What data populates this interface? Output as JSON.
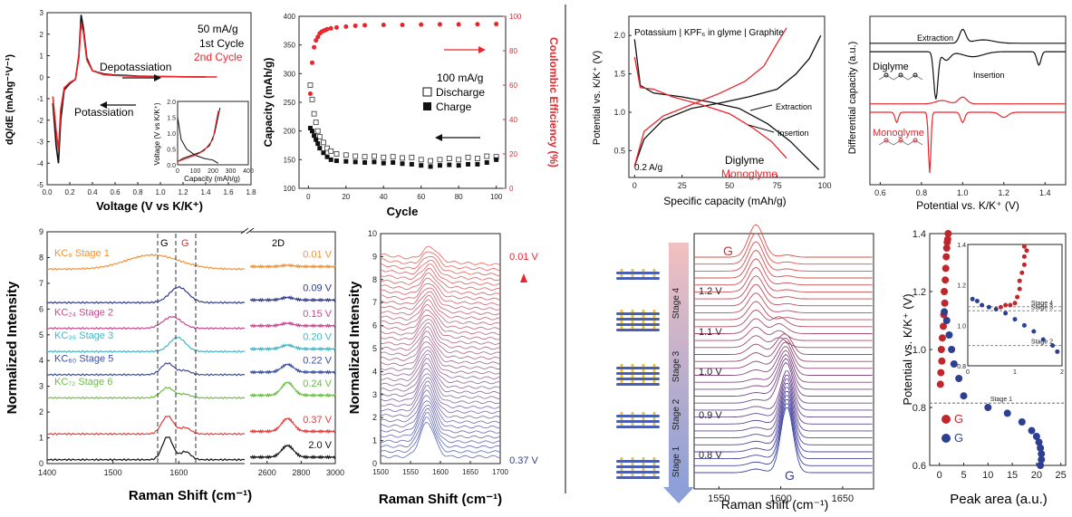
{
  "panels": {
    "p1": {
      "ylabel": "dQ/dE (mAhg⁻¹V⁻¹)",
      "xlabel": "Voltage (V vs K/K⁺)",
      "legend": [
        "50 mA/g",
        "1st Cycle",
        "2nd Cycle"
      ],
      "ann": [
        "Depotassiation",
        "Potassiation"
      ],
      "inset_ylabel": "Voltage (V vs K/K⁺)",
      "inset_xlabel": "Capacity (mAh/g)"
    },
    "p2": {
      "ylabel": "Capacity (mAh/g)",
      "y2label": "Coulombic Efficiency (%)",
      "xlabel": "Cycle",
      "legend": [
        "100 mA/g",
        "Discharge",
        "Charge"
      ]
    },
    "p3": {
      "ylabel": "Normalized Intensity",
      "xlabel": "Raman Shift (cm⁻¹)",
      "peaks": [
        "G",
        "G",
        "2D"
      ],
      "stage_labels": [
        "KC₈ Stage 1",
        "KC₂₄ Stage 2",
        "KC₃₆ Stage 3",
        "KC₆₀ Stage 5",
        "KC₇₂ Stage 6"
      ],
      "volt_labels": [
        "0.01 V",
        "0.09 V",
        "0.15 V",
        "0.20 V",
        "0.22 V",
        "0.24 V",
        "0.37 V",
        "2.0 V"
      ]
    },
    "p4": {
      "ylabel": "Normalized Intensity",
      "xlabel": "Raman Shift (cm⁻¹)",
      "top": "0.01 V",
      "bottom": "0.37 V"
    },
    "p5": {
      "ylabel": "Potential vs. K/K⁺ (V)",
      "xlabel": "Specific capacity (mAh/g)",
      "title": "Potassium | KPF₆ in glyme | Graphite",
      "rate": "0.2 A/g",
      "ann": [
        "Extraction",
        "Insertion"
      ],
      "legend": [
        "Diglyme",
        "Monoglyme"
      ]
    },
    "p6": {
      "ylabel": "Differential capacity (a.u.)",
      "xlabel": "Potential vs. K/K⁺ (V)",
      "ann": [
        "Extraction",
        "Insertion"
      ],
      "labels": [
        "Diglyme",
        "Monoglyme"
      ]
    },
    "p7": {
      "xlabel": "Raman shift (cm⁻¹)",
      "peak_top": "G",
      "peak_bottom": "G",
      "volts": [
        "1.2 V",
        "1.1 V",
        "1.0 V",
        "0.9 V",
        "0.8 V"
      ],
      "stages": [
        "Stage 4",
        "Stage 3",
        "Stage 2",
        "Stage 1"
      ]
    },
    "p8": {
      "ylabel": "Potential vs. K/K⁺ (V)",
      "xlabel": "Peak area (a.u.)",
      "legend": [
        "G",
        "G"
      ],
      "inset_stages": [
        "Stage 4",
        "Stage 3",
        "Stage 2",
        "Stage 1"
      ]
    }
  },
  "colors": {
    "red": "#e8262c",
    "black": "#111111",
    "gray": "#555555",
    "blue": "#2c3f93"
  },
  "chart_data": [
    {
      "id": "p1",
      "type": "line",
      "xlim": [
        0,
        1.8
      ],
      "ylim": [
        -5,
        3
      ],
      "xticks": [
        0,
        0.2,
        0.4,
        0.6,
        0.8,
        1.0,
        1.2,
        1.4,
        1.6,
        1.8
      ],
      "yticks": [
        -5,
        -4,
        -3,
        -2,
        -1,
        0,
        1,
        2,
        3
      ],
      "series": [
        {
          "name": "1st Cycle",
          "x": [
            0.05,
            0.08,
            0.1,
            0.12,
            0.15,
            0.2,
            0.25,
            0.28,
            0.3,
            0.32,
            0.35,
            0.4,
            0.5,
            0.6,
            0.7,
            0.8,
            1.0,
            1.2,
            1.4
          ],
          "y": [
            -1.2,
            -3.2,
            -4.0,
            -2.0,
            -0.6,
            -0.3,
            -0.1,
            1.0,
            2.9,
            2.3,
            0.9,
            0.3,
            0.15,
            0.1,
            0.08,
            0.05,
            0.03,
            0.02,
            0.01
          ]
        },
        {
          "name": "2nd Cycle",
          "x": [
            0.05,
            0.08,
            0.1,
            0.12,
            0.15,
            0.2,
            0.25,
            0.28,
            0.3,
            0.32,
            0.35,
            0.4,
            0.5,
            0.6,
            0.7,
            0.8,
            1.0,
            1.2,
            1.5
          ],
          "y": [
            -0.9,
            -2.5,
            -3.4,
            -1.5,
            -0.5,
            -0.25,
            -0.1,
            0.9,
            2.5,
            2.1,
            0.8,
            0.3,
            0.12,
            0.08,
            0.06,
            0.04,
            0.03,
            0.02,
            0.01
          ]
        }
      ],
      "inset": {
        "xlim": [
          0,
          400
        ],
        "ylim": [
          0,
          2.0
        ],
        "xticks": [
          0,
          100,
          200,
          300,
          400
        ],
        "yticks": [
          0.0,
          0.5,
          1.0,
          1.5,
          2.0
        ],
        "series": [
          {
            "name": "1st discharge",
            "x": [
              0,
              20,
              50,
              100,
              150,
              200,
              230
            ],
            "y": [
              1.5,
              0.8,
              0.5,
              0.3,
              0.2,
              0.15,
              0.05
            ]
          },
          {
            "name": "1st charge",
            "x": [
              0,
              30,
              80,
              130,
              180,
              210,
              240
            ],
            "y": [
              0.1,
              0.2,
              0.3,
              0.4,
              0.6,
              1.0,
              1.8
            ]
          },
          {
            "name": "2nd",
            "x": [
              0,
              50,
              100,
              150,
              200,
              230
            ],
            "y": [
              0.1,
              0.2,
              0.3,
              0.45,
              0.8,
              1.7
            ]
          }
        ]
      }
    },
    {
      "id": "p2",
      "type": "scatter",
      "xlim": [
        -5,
        105
      ],
      "ylim": [
        100,
        400
      ],
      "y2lim": [
        0,
        100
      ],
      "xticks": [
        0,
        20,
        40,
        60,
        80,
        100
      ],
      "yticks": [
        100,
        150,
        200,
        250,
        300,
        350,
        400
      ],
      "y2ticks": [
        0,
        20,
        40,
        60,
        80,
        100
      ],
      "discharge": {
        "x": [
          1,
          2,
          3,
          4,
          5,
          6,
          8,
          10,
          12,
          15,
          20,
          25,
          30,
          35,
          40,
          45,
          50,
          55,
          60,
          65,
          70,
          75,
          80,
          85,
          90,
          95,
          100
        ],
        "y": [
          280,
          255,
          230,
          215,
          200,
          190,
          180,
          170,
          165,
          160,
          158,
          156,
          155,
          156,
          154,
          155,
          153,
          154,
          150,
          148,
          150,
          152,
          150,
          154,
          152,
          156,
          155
        ]
      },
      "charge": {
        "x": [
          1,
          2,
          3,
          4,
          5,
          6,
          8,
          10,
          12,
          15,
          20,
          25,
          30,
          35,
          40,
          45,
          50,
          55,
          60,
          65,
          70,
          75,
          80,
          85,
          90,
          95,
          100
        ],
        "y": [
          205,
          200,
          192,
          185,
          178,
          170,
          162,
          155,
          150,
          148,
          147,
          146,
          145,
          146,
          144,
          145,
          143,
          142,
          140,
          138,
          140,
          141,
          140,
          142,
          142,
          145,
          150
        ]
      },
      "ce": {
        "x": [
          1,
          2,
          3,
          4,
          5,
          6,
          7,
          8,
          9,
          10,
          12,
          15,
          20,
          25,
          30,
          40,
          50,
          60,
          70,
          80,
          90,
          100
        ],
        "y": [
          55,
          73,
          82,
          86,
          88,
          90,
          91,
          91.5,
          92,
          92.5,
          93,
          93.5,
          94,
          94.5,
          94.8,
          95,
          95,
          95.2,
          95.3,
          95.3,
          95.4,
          95.5
        ]
      }
    },
    {
      "id": "p3",
      "type": "line",
      "xlabel": "Raman Shift (cm⁻¹)",
      "ylim": [
        0,
        9
      ],
      "xticks": [
        1400,
        1500,
        1600,
        2600,
        2800,
        3000
      ],
      "yticks": [
        0,
        1,
        2,
        3,
        4,
        5,
        6,
        7,
        8,
        9
      ],
      "offsets": [
        7.4,
        6.1,
        5.1,
        4.2,
        3.3,
        2.4,
        1.0,
        0.0
      ],
      "colors": [
        "#f0923a",
        "#303a8a",
        "#c8478f",
        "#3fb6c9",
        "#3a4f9e",
        "#6bbd44",
        "#e23c3c",
        "#111111"
      ]
    },
    {
      "id": "p4",
      "type": "line",
      "xlim": [
        1500,
        1700
      ],
      "ylim": [
        0,
        10
      ],
      "xticks": [
        1500,
        1550,
        1600,
        1650,
        1700
      ],
      "yticks": [
        0,
        1,
        2,
        3,
        4,
        5,
        6,
        7,
        8,
        9,
        10
      ],
      "n_spectra": 40
    },
    {
      "id": "p5",
      "type": "line",
      "xlim": [
        -3,
        100
      ],
      "ylim": [
        0.15,
        2.25
      ],
      "xticks": [
        0,
        25,
        50,
        75,
        100
      ],
      "yticks": [
        0.5,
        1.0,
        1.5,
        2.0
      ],
      "series": [
        {
          "name": "Diglyme insertion",
          "x": [
            0,
            3,
            10,
            25,
            40,
            55,
            70,
            82,
            90,
            97
          ],
          "y": [
            1.95,
            1.35,
            1.25,
            1.2,
            1.13,
            1.05,
            0.85,
            0.62,
            0.42,
            0.25
          ]
        },
        {
          "name": "Diglyme extraction",
          "x": [
            0,
            5,
            15,
            30,
            45,
            60,
            75,
            85,
            92,
            98
          ],
          "y": [
            0.3,
            0.65,
            0.9,
            1.05,
            1.12,
            1.2,
            1.3,
            1.5,
            1.7,
            2.0
          ]
        },
        {
          "name": "Monoglyme insertion",
          "x": [
            0,
            3,
            10,
            20,
            35,
            50,
            62,
            72,
            80
          ],
          "y": [
            1.72,
            1.32,
            1.3,
            1.2,
            1.1,
            0.98,
            0.8,
            0.62,
            0.4
          ]
        },
        {
          "name": "Monoglyme extraction",
          "x": [
            0,
            5,
            15,
            30,
            45,
            58,
            68,
            75,
            80
          ],
          "y": [
            0.3,
            0.75,
            0.95,
            1.1,
            1.25,
            1.4,
            1.6,
            1.9,
            2.1
          ]
        }
      ]
    },
    {
      "id": "p6",
      "type": "line",
      "xlim": [
        0.55,
        1.5
      ],
      "xticks": [
        0.6,
        0.8,
        1.0,
        1.2,
        1.4
      ],
      "series": [
        {
          "name": "Diglyme",
          "offset": 0.75
        },
        {
          "name": "Monoglyme",
          "offset": 0.35
        }
      ]
    },
    {
      "id": "p7",
      "type": "line",
      "xlim": [
        1530,
        1675
      ],
      "xticks": [
        1550,
        1600,
        1650
      ],
      "n_spectra": 32
    },
    {
      "id": "p8",
      "type": "scatter",
      "xlim": [
        -2,
        26
      ],
      "ylim": [
        0.6,
        1.4
      ],
      "xticks": [
        0,
        5,
        10,
        15,
        20,
        25
      ],
      "yticks": [
        0.6,
        0.8,
        1.0,
        1.2,
        1.4
      ],
      "G_UC": {
        "x": [
          0.2,
          0.3,
          0.5,
          0.4,
          0.6,
          0.8,
          0.9,
          1.1,
          1.0,
          1.2,
          1.3,
          1.4,
          1.5,
          1.6,
          1.7,
          1.8
        ],
        "y": [
          0.88,
          0.92,
          0.96,
          1.0,
          1.04,
          1.08,
          1.12,
          1.16,
          1.2,
          1.24,
          1.28,
          1.32,
          1.35,
          1.37,
          1.38,
          1.4
        ]
      },
      "G_C": {
        "x": [
          1,
          1.5,
          2,
          2.5,
          3,
          4,
          5,
          10,
          14,
          17,
          19,
          20,
          20.5,
          20.8,
          21,
          21,
          20.8
        ],
        "y": [
          1.13,
          1.1,
          1.05,
          1.0,
          0.95,
          0.9,
          0.84,
          0.8,
          0.78,
          0.75,
          0.72,
          0.7,
          0.68,
          0.66,
          0.64,
          0.62,
          0.6
        ]
      },
      "inset": {
        "xlim": [
          0,
          2
        ],
        "ylim": [
          0.8,
          1.4
        ],
        "xticks": [
          0,
          1,
          2
        ],
        "yticks": [
          0.8,
          1.0,
          1.2,
          1.4
        ]
      }
    }
  ]
}
